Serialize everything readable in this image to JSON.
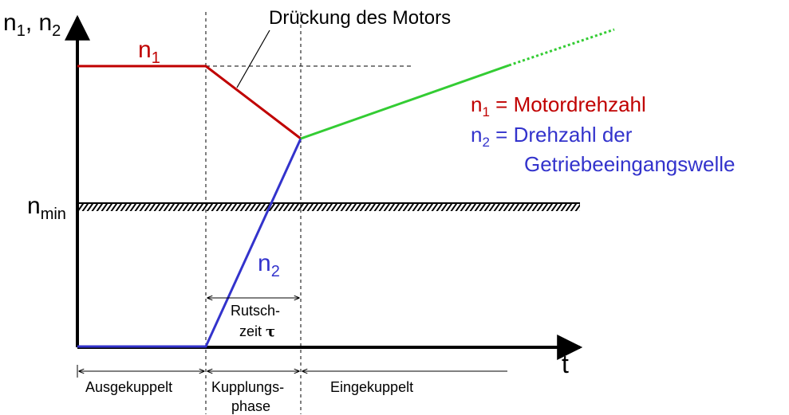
{
  "axes": {
    "y_label": {
      "main": "n",
      "sub1": "1",
      "sep": ", n",
      "sub2": "2"
    },
    "x_label": "t",
    "nmin_label": {
      "main": "n",
      "sub": "min"
    }
  },
  "annotations": {
    "motor_drop": "Drückung des Motors",
    "n1_label": {
      "main": "n",
      "sub": "1"
    },
    "n2_label": {
      "main": "n",
      "sub": "2"
    },
    "slip_time": {
      "line1": "Rutsch-",
      "line2_text": "zeit ",
      "line2_symbol": "τ"
    }
  },
  "legend": {
    "n1": {
      "main": "n",
      "sub": "1",
      "text": " = Motordrehzahl"
    },
    "n2": {
      "main": "n",
      "sub": "2",
      "text": " = Drehzahl der"
    },
    "n2_cont": "Getriebeeingangswelle"
  },
  "phases": [
    "Ausgekuppelt",
    "Kupplungs-",
    "phase",
    "Eingekuppelt"
  ],
  "colors": {
    "n1": "#c00000",
    "n2": "#3333cc",
    "combined": "#33cc33",
    "axis": "#000000",
    "guide": "#000000"
  }
}
